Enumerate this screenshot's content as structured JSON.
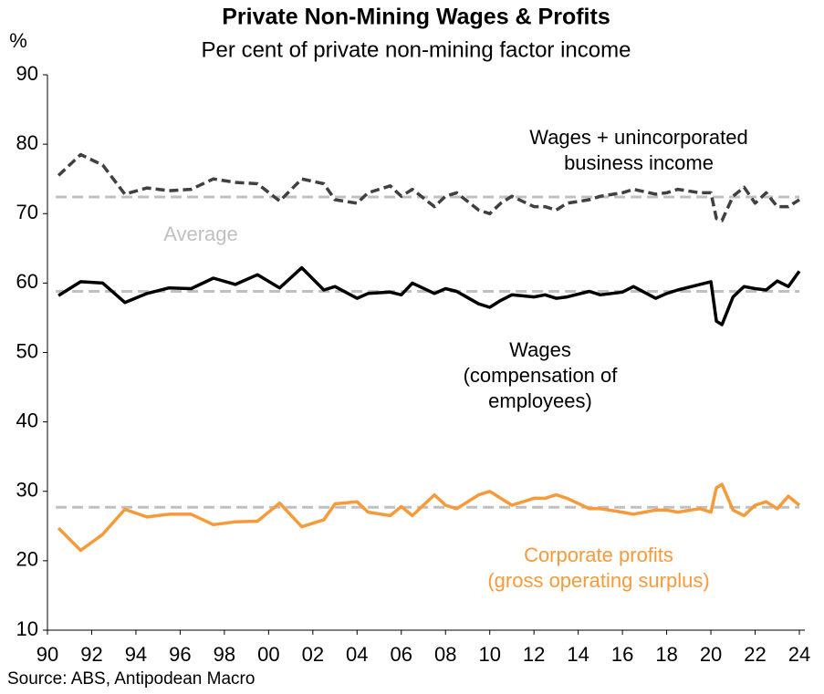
{
  "chart_data": {
    "type": "line",
    "title": "Private Non-Mining Wages & Profits",
    "subtitle": "Per cent of private non-mining factor income",
    "y_label": "%",
    "source": "Source: ABS, Antipodean Macro",
    "average_label": "Average",
    "xlim": [
      1990,
      2024
    ],
    "xticks": [
      {
        "value": 1990,
        "label": "90"
      },
      {
        "value": 1992,
        "label": "92"
      },
      {
        "value": 1994,
        "label": "94"
      },
      {
        "value": 1996,
        "label": "96"
      },
      {
        "value": 1998,
        "label": "98"
      },
      {
        "value": 2000,
        "label": "00"
      },
      {
        "value": 2002,
        "label": "02"
      },
      {
        "value": 2004,
        "label": "04"
      },
      {
        "value": 2006,
        "label": "06"
      },
      {
        "value": 2008,
        "label": "08"
      },
      {
        "value": 2010,
        "label": "10"
      },
      {
        "value": 2012,
        "label": "12"
      },
      {
        "value": 2014,
        "label": "14"
      },
      {
        "value": 2016,
        "label": "16"
      },
      {
        "value": 2018,
        "label": "18"
      },
      {
        "value": 2020,
        "label": "20"
      },
      {
        "value": 2022,
        "label": "22"
      },
      {
        "value": 2024,
        "label": "24"
      }
    ],
    "ylim": [
      10,
      90
    ],
    "yticks": [
      10,
      20,
      30,
      40,
      50,
      60,
      70,
      80,
      90
    ],
    "average_color": "#c0c0c0",
    "x": [
      1990.5,
      1991.5,
      1992.5,
      1993.5,
      1994.5,
      1995.5,
      1996.5,
      1997.5,
      1998.5,
      1999.5,
      2000.5,
      2001.5,
      2002.5,
      2003,
      2004,
      2004.5,
      2005.5,
      2006,
      2006.5,
      2007.5,
      2008,
      2008.5,
      2009.5,
      2010,
      2010.5,
      2011,
      2012,
      2012.5,
      2013,
      2013.5,
      2014.5,
      2015,
      2016,
      2016.5,
      2017.5,
      2018,
      2018.5,
      2019.5,
      2020,
      2020.25,
      2020.5,
      2021,
      2021.5,
      2022,
      2022.5,
      2023,
      2023.5,
      2024
    ],
    "series": [
      {
        "name": [
          "Wages + unincorporated",
          "business income"
        ],
        "color": "#404040",
        "dash": true,
        "average": 72.4,
        "values": [
          75.5,
          78.5,
          77,
          72.8,
          73.7,
          73.3,
          73.5,
          75,
          74.5,
          74.3,
          71.8,
          75,
          74.3,
          72,
          71.5,
          73,
          74,
          72.5,
          73.5,
          71,
          72.5,
          73,
          70.5,
          70,
          71.5,
          72.5,
          71,
          71,
          70.5,
          71.5,
          72,
          72.5,
          73,
          73.5,
          72.8,
          73,
          73.5,
          73,
          73,
          69.3,
          69,
          72.5,
          73.8,
          71.5,
          73,
          71,
          71,
          72
        ]
      },
      {
        "name": [
          "Wages",
          "(compensation of",
          "employees)"
        ],
        "color": "#000000",
        "dash": false,
        "average": 58.8,
        "values": [
          58.2,
          60.2,
          60,
          57.2,
          58.5,
          59.3,
          59.2,
          60.7,
          59.8,
          61.2,
          59.3,
          62.2,
          59,
          59.5,
          57.8,
          58.5,
          58.7,
          58.3,
          60,
          58.5,
          59.2,
          58.8,
          57,
          56.5,
          57.5,
          58.3,
          58,
          58.3,
          57.8,
          58,
          58.8,
          58.3,
          58.7,
          59.5,
          57.8,
          58.5,
          59,
          59.8,
          60.2,
          54.5,
          54,
          58,
          59.5,
          59.2,
          59,
          60.3,
          59.5,
          61.7
        ]
      },
      {
        "name": [
          "Corporate profits",
          "(gross operating surplus)"
        ],
        "color": "#f79a3a",
        "dash": false,
        "average": 27.7,
        "values": [
          24.7,
          21.5,
          23.8,
          27.4,
          26.3,
          26.7,
          26.7,
          25.2,
          25.6,
          25.7,
          28.3,
          24.9,
          25.9,
          28.2,
          28.5,
          27,
          26.5,
          27.8,
          26.5,
          29.5,
          28,
          27.5,
          29.5,
          30,
          29,
          28,
          29,
          29,
          29.5,
          29,
          27.5,
          27.5,
          27,
          26.7,
          27.3,
          27.3,
          27,
          27.5,
          27,
          30.5,
          31,
          27.3,
          26.5,
          28,
          28.5,
          27.5,
          29.3,
          28
        ]
      }
    ]
  }
}
